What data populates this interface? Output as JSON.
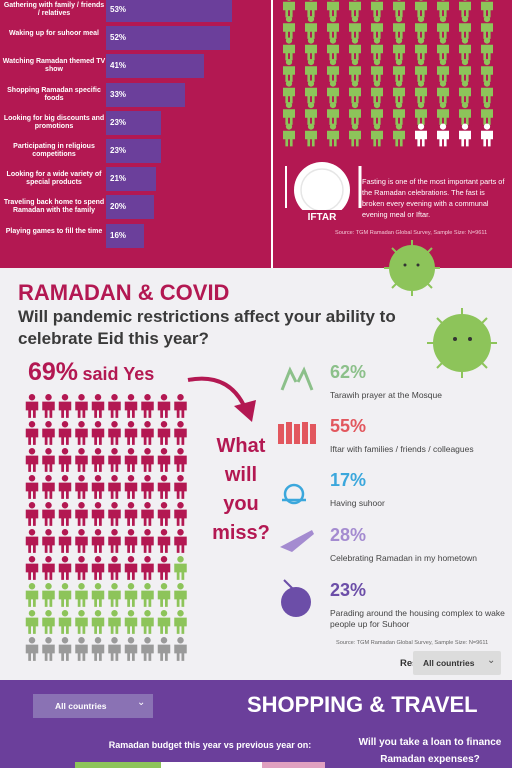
{
  "top_chart": {
    "items": [
      {
        "label": "Gathering with family / friends / relatives",
        "value": 53,
        "value_label": "53%"
      },
      {
        "label": "Waking up for suhoor meal",
        "value": 52,
        "value_label": "52%"
      },
      {
        "label": "Watching Ramadan themed TV show",
        "value": 41,
        "value_label": "41%"
      },
      {
        "label": "Shopping Ramadan specific foods",
        "value": 33,
        "value_label": "33%"
      },
      {
        "label": "Looking for big discounts and promotions",
        "value": 23,
        "value_label": "23%"
      },
      {
        "label": "Participating in religious competitions",
        "value": 23,
        "value_label": "23%"
      },
      {
        "label": "Looking for a wide variety of special products",
        "value": 21,
        "value_label": "21%"
      },
      {
        "label": "Traveling back home to spend Ramadan with the family",
        "value": 20,
        "value_label": "20%"
      },
      {
        "label": "Playing games to fill the time",
        "value": 16,
        "value_label": "16%"
      }
    ]
  },
  "iftar": {
    "plate_label": "IFTAR",
    "text": "Fasting is one of the most important parts of the Ramadan celebrations. The fast is broken every evening with a communal evening meal or Iftar.",
    "source": "Source: TGM Ramadan Global Survey, Sample Size:  N=9611"
  },
  "covid": {
    "title": "RAMADAN & COVID",
    "question": "Will pandemic restrictions affect your ability to celebrate Eid this year?",
    "yes_value": 69,
    "yes_label": "69%",
    "yes_text": "said Yes",
    "miss_title": "What will you miss?",
    "missed": [
      {
        "value": 62,
        "value_label": "62%",
        "label": "Tarawih prayer at the Mosque",
        "color": "#8cc08a"
      },
      {
        "value": 55,
        "value_label": "55%",
        "label": "Iftar with families / friends / colleagues",
        "color": "#e2575e"
      },
      {
        "value": 17,
        "value_label": "17%",
        "label": "Having suhoor",
        "color": "#3ba7dc"
      },
      {
        "value": 28,
        "value_label": "28%",
        "label": "Celebrating Ramadan in my hometown",
        "color": "#a48bd0"
      },
      {
        "value": 23,
        "value_label": "23%",
        "label": "Parading around the housing complex to wake people up for Suhoor",
        "color": "#6c4ea8"
      }
    ],
    "source": "Source: TGM Ramadan Global Survey, Sample Size:  N=9611",
    "results_for": "Results for:",
    "dropdown": "All countries"
  },
  "shopping": {
    "dropdown": "All countries",
    "title": "SHOPPING & TRAVEL",
    "budget_question": "Ramadan budget this year vs previous year on:",
    "loan_question": "Will you take a loan to finance Ramadan expenses?"
  }
}
